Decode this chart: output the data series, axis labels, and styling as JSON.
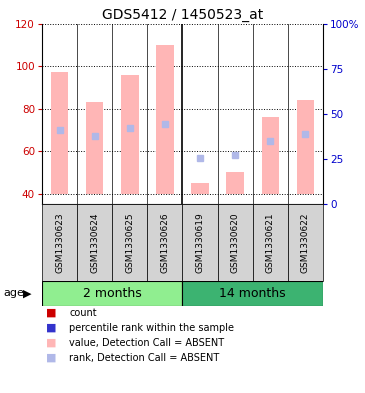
{
  "title": "GDS5412 / 1450523_at",
  "samples": [
    "GSM1330623",
    "GSM1330624",
    "GSM1330625",
    "GSM1330626",
    "GSM1330619",
    "GSM1330620",
    "GSM1330621",
    "GSM1330622"
  ],
  "group_colors": [
    "#90ee90",
    "#3cb371"
  ],
  "absent_values": [
    97,
    83,
    96,
    110,
    45,
    50,
    76,
    84
  ],
  "absent_ranks": [
    70,
    67,
    71,
    73,
    57,
    58,
    65,
    68
  ],
  "ylim_left": [
    35,
    120
  ],
  "ylim_right": [
    0,
    100
  ],
  "yticks_left": [
    40,
    60,
    80,
    100,
    120
  ],
  "yticks_right": [
    0,
    25,
    50,
    75,
    100
  ],
  "ytick_labels_right": [
    "0",
    "25",
    "50",
    "75",
    "100%"
  ],
  "bar_bottom": 40,
  "absent_bar_color": "#ffb6b6",
  "absent_rank_color": "#b0b8e8",
  "left_axis_color": "#cc0000",
  "right_axis_color": "#0000cc",
  "label_area_color": "#d3d3d3",
  "group_separator_idx": 3,
  "legend_items": [
    {
      "label": "count",
      "color": "#cc0000"
    },
    {
      "label": "percentile rank within the sample",
      "color": "#3333cc"
    },
    {
      "label": "value, Detection Call = ABSENT",
      "color": "#ffb6b6"
    },
    {
      "label": "rank, Detection Call = ABSENT",
      "color": "#b0b8e8"
    }
  ]
}
